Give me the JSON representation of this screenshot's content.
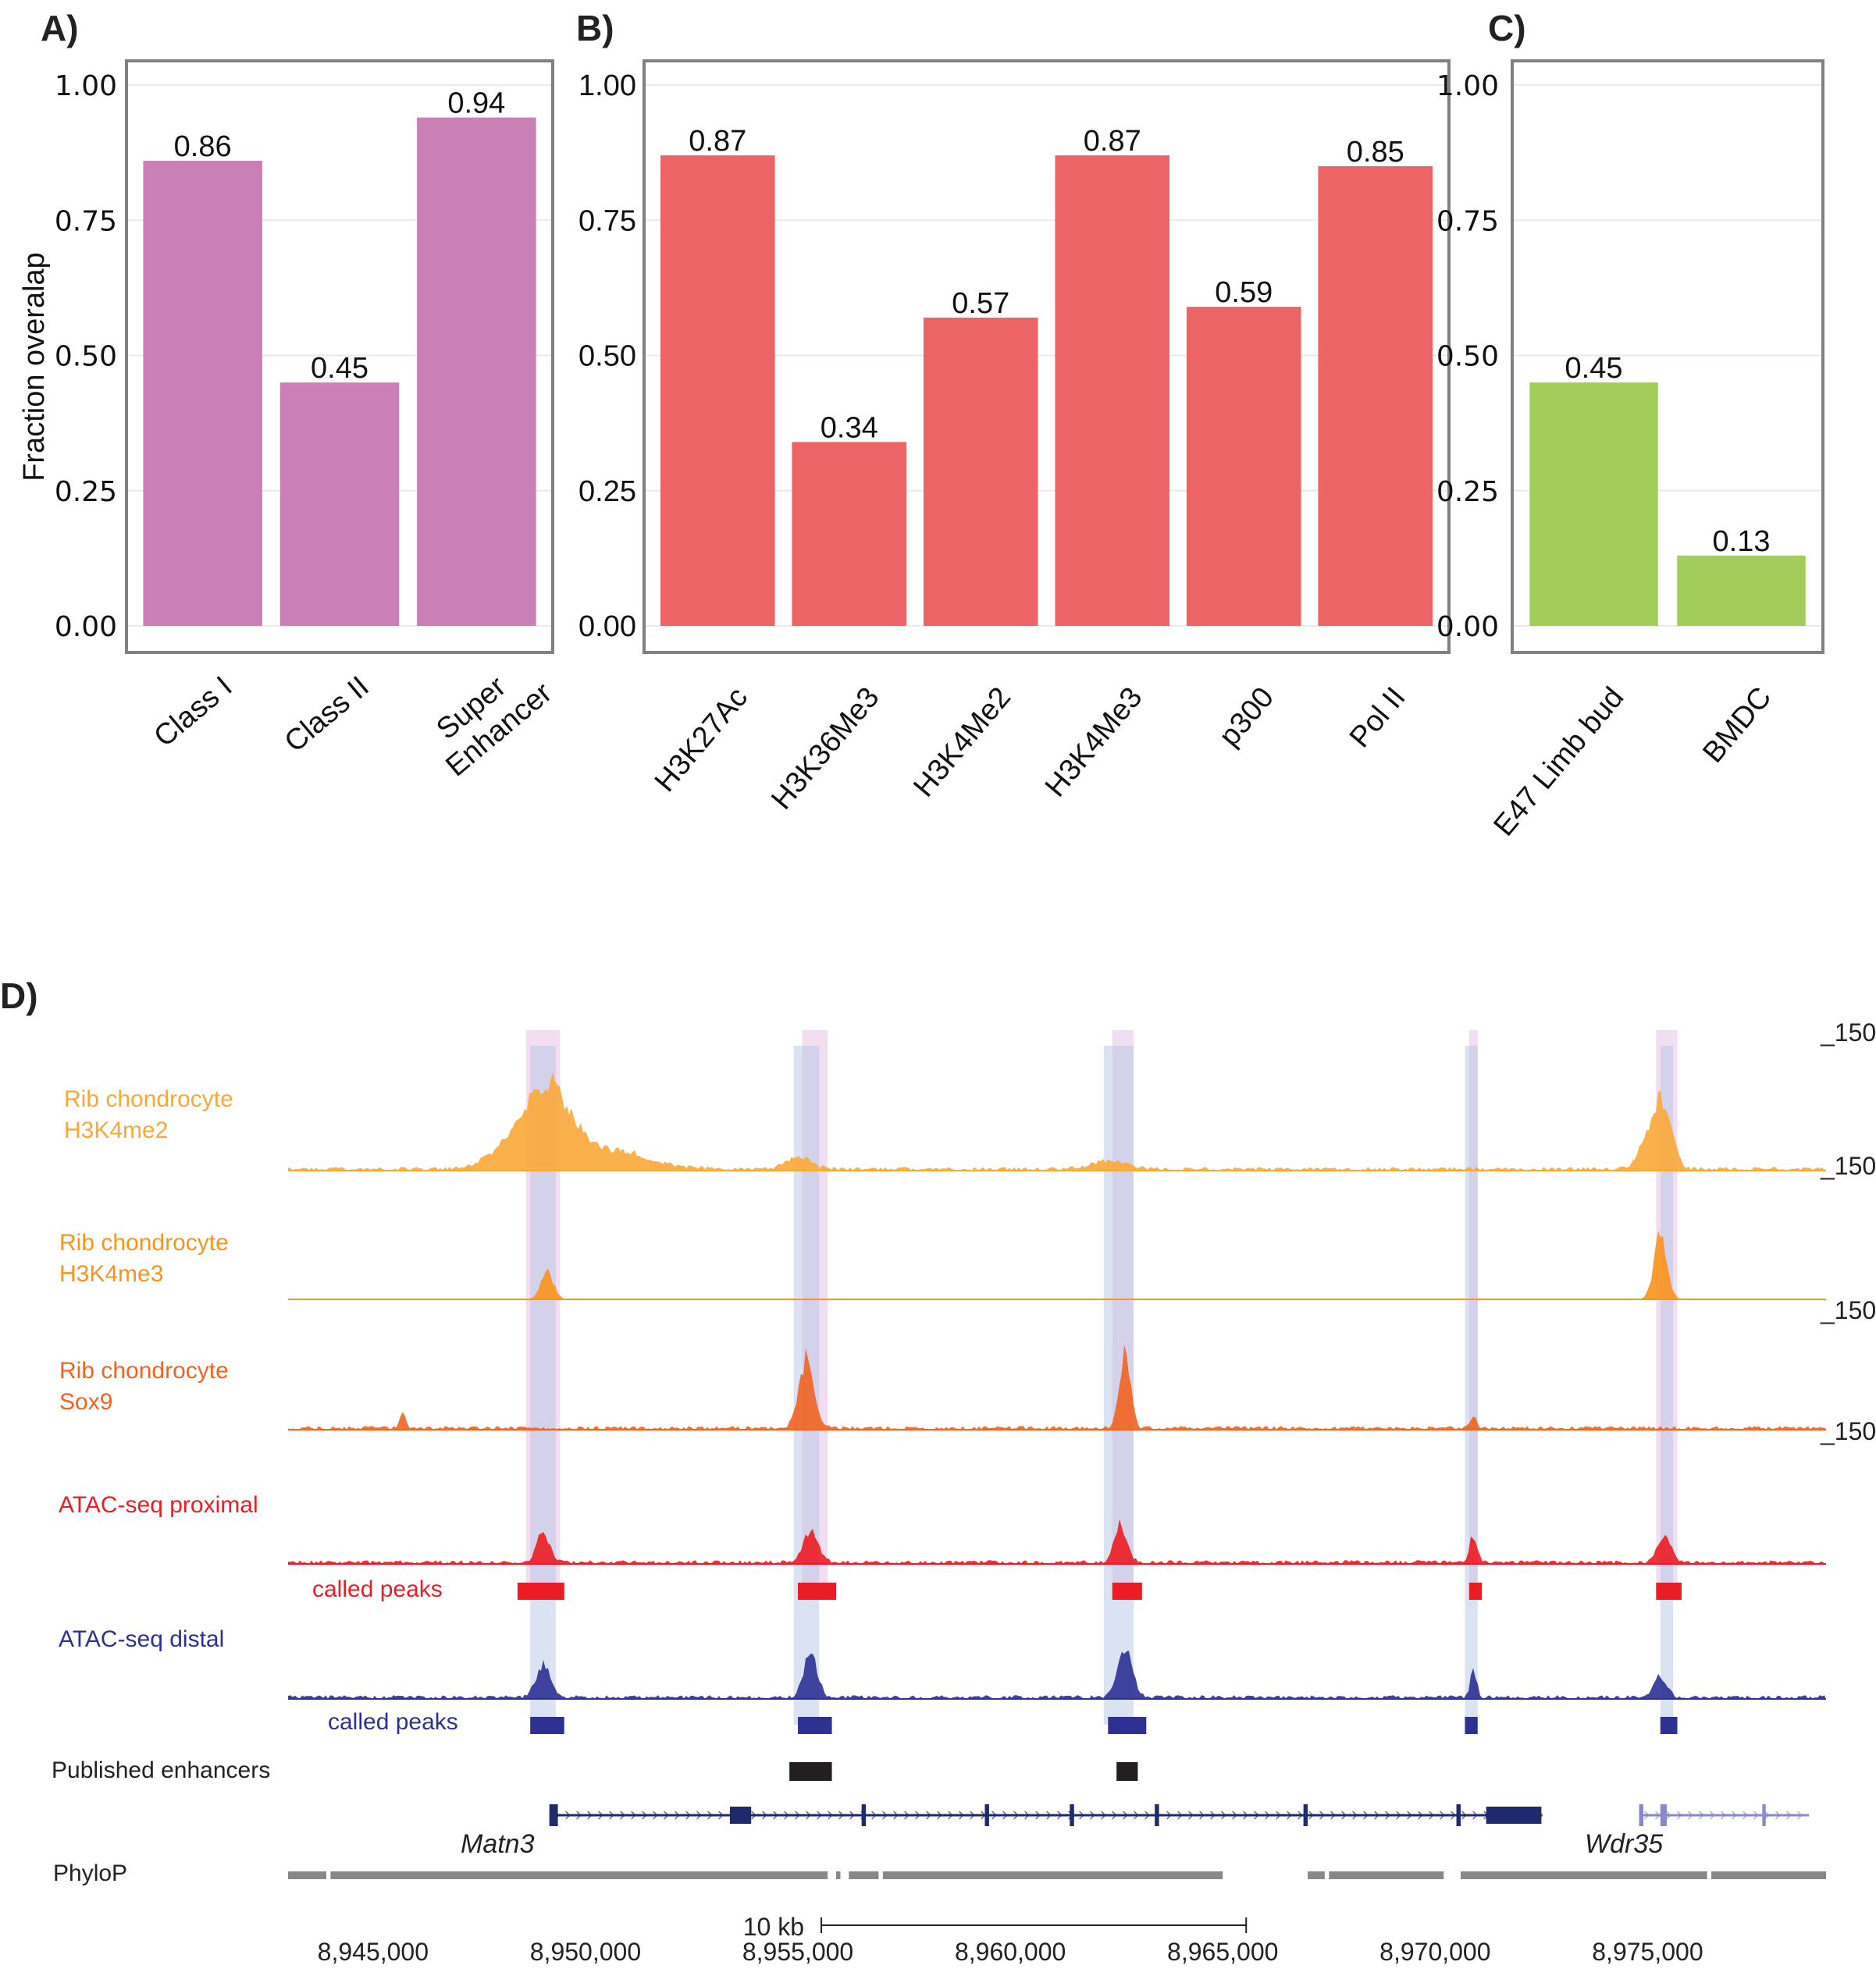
{
  "chart_data": [
    {
      "panel": "A)",
      "type": "bar",
      "categories": [
        "Class I",
        "Class II",
        "Super\nEnhancer"
      ],
      "values": [
        0.86,
        0.45,
        0.94
      ],
      "value_labels": [
        "0.86",
        "0.45",
        "0.94"
      ],
      "ylabel": "Fraction overalap",
      "xlabel": "",
      "ylim": [
        0,
        1
      ],
      "yticks": [
        "0.00",
        "0.25",
        "0.50",
        "0.75",
        "1.00"
      ],
      "color": "#cb80b5",
      "grid": true
    },
    {
      "panel": "B)",
      "type": "bar",
      "categories": [
        "H3K27Ac",
        "H3K36Me3",
        "H3K4Me2",
        "H3K4Me3",
        "p300",
        "Pol II"
      ],
      "values": [
        0.87,
        0.34,
        0.57,
        0.87,
        0.59,
        0.85
      ],
      "value_labels": [
        "0.87",
        "0.34",
        "0.57",
        "0.87",
        "0.59",
        "0.85"
      ],
      "ylabel": "",
      "xlabel": "",
      "ylim": [
        0,
        1
      ],
      "yticks": [
        "0.00",
        "0.25",
        "0.50",
        "0.75",
        "1.00"
      ],
      "color": "#ed6467",
      "grid": true
    },
    {
      "panel": "C)",
      "type": "bar",
      "categories": [
        "E47 Limb bud",
        "BMDC"
      ],
      "values": [
        0.45,
        0.13
      ],
      "value_labels": [
        "0.45",
        "0.13"
      ],
      "ylabel": "",
      "xlabel": "",
      "ylim": [
        0,
        1
      ],
      "yticks": [
        "0.00",
        "0.25",
        "0.50",
        "0.75",
        "1.00"
      ],
      "color": "#a2cd5a",
      "grid": true
    }
  ],
  "browser": {
    "panel": "D)",
    "region_start": 8943000,
    "region_end": 8979200,
    "scale_bar": {
      "label": "10 kb",
      "start": 8955000,
      "end": 8965000
    },
    "coord_labels": [
      "8,945,000",
      "8,950,000",
      "8,955,000",
      "8,960,000",
      "8,965,000",
      "8,970,000",
      "8,975,000"
    ],
    "coord_values": [
      8945000,
      8950000,
      8955000,
      8960000,
      8965000,
      8970000,
      8975000
    ],
    "highlights_pink": [
      [
        8948600,
        8949400
      ],
      [
        8955100,
        8955700
      ],
      [
        8962400,
        8962900
      ],
      [
        8970800,
        8971000
      ],
      [
        8975200,
        8975700
      ]
    ],
    "highlights_blue": [
      [
        8948700,
        8949300
      ],
      [
        8954900,
        8955500
      ],
      [
        8962200,
        8962900
      ],
      [
        8970700,
        8971000
      ],
      [
        8975300,
        8975600
      ]
    ],
    "tracks": [
      {
        "label_lines": [
          "Rib chondrocyte",
          "H3K4me2"
        ],
        "color": "#f9a838",
        "scale_label": "_150",
        "peaks": [
          [
            8949200,
            0.55,
            900
          ],
          [
            8948500,
            0.3,
            1200
          ],
          [
            8950300,
            0.2,
            2000
          ],
          [
            8955000,
            0.12,
            600
          ],
          [
            8962300,
            0.08,
            800
          ],
          [
            8975100,
            0.35,
            500
          ],
          [
            8975400,
            0.45,
            400
          ]
        ],
        "background": 0.03
      },
      {
        "label_lines": [
          "Rib chondrocyte",
          "H3K4me3"
        ],
        "color": "#f7941d",
        "scale_label": "_150",
        "peaks": [
          [
            8949100,
            0.25,
            300
          ],
          [
            8975300,
            0.6,
            300
          ]
        ],
        "background": 0.0
      },
      {
        "label_lines": [
          "Rib chondrocyte",
          "Sox9"
        ],
        "color": "#f26322",
        "scale_label": "_150",
        "peaks": [
          [
            8955200,
            0.65,
            350
          ],
          [
            8962700,
            0.75,
            250
          ],
          [
            8945700,
            0.15,
            120
          ],
          [
            8970900,
            0.1,
            150
          ]
        ],
        "background": 0.03
      },
      {
        "label_lines": [
          "ATAC-seq proximal"
        ],
        "color": "#ec1c24",
        "scale_label": "_150",
        "peaks": [
          [
            8949000,
            0.3,
            300
          ],
          [
            8955300,
            0.3,
            350
          ],
          [
            8962600,
            0.35,
            300
          ],
          [
            8970900,
            0.25,
            180
          ],
          [
            8975400,
            0.25,
            300
          ]
        ],
        "background": 0.03
      },
      {
        "label_lines": [
          "ATAC-seq distal"
        ],
        "color": "#2e3192",
        "scale_label": "",
        "peaks": [
          [
            8949000,
            0.3,
            350
          ],
          [
            8955300,
            0.45,
            300
          ],
          [
            8962700,
            0.45,
            350
          ],
          [
            8970900,
            0.25,
            150
          ],
          [
            8975300,
            0.2,
            300
          ]
        ],
        "background": 0.03
      }
    ],
    "called_peaks": [
      {
        "label": "called peaks",
        "color": "#ec1c24",
        "intervals": [
          [
            8948400,
            8949500
          ],
          [
            8955000,
            8955900
          ],
          [
            8962400,
            8963100
          ],
          [
            8970800,
            8971100
          ],
          [
            8975200,
            8975800
          ]
        ]
      },
      {
        "label": "called peaks",
        "color": "#2e3192",
        "intervals": [
          [
            8948700,
            8949500
          ],
          [
            8955000,
            8955800
          ],
          [
            8962300,
            8963200
          ],
          [
            8970700,
            8971000
          ],
          [
            8975300,
            8975700
          ]
        ]
      }
    ],
    "published_enhancers": {
      "label": "Published enhancers",
      "color": "#231f20",
      "intervals": [
        [
          8954800,
          8955800
        ],
        [
          8962500,
          8963000
        ]
      ]
    },
    "genes": [
      {
        "name": "Matn3",
        "color": "#1f2a6b",
        "start": 8949150,
        "end": 8972500,
        "exons": [
          [
            8949150,
            8949350
          ],
          [
            8953400,
            8953900
          ],
          [
            8956500,
            8956600
          ],
          [
            8959400,
            8959500
          ],
          [
            8961400,
            8961500
          ],
          [
            8963400,
            8963500
          ],
          [
            8966900,
            8967000
          ],
          [
            8970500,
            8970600
          ],
          [
            8971200,
            8972500
          ]
        ]
      },
      {
        "name": "Wdr35",
        "color": "#8a88c8",
        "start": 8974800,
        "end": 8978800,
        "exons": [
          [
            8974800,
            8974900
          ],
          [
            8975300,
            8975450
          ],
          [
            8977700,
            8977780
          ]
        ]
      }
    ],
    "phylop": {
      "label": "PhyloP",
      "color": "#888888",
      "segments": [
        [
          8943000,
          8943900
        ],
        [
          8944000,
          8955700
        ],
        [
          8955900,
          8956000
        ],
        [
          8956200,
          8956900
        ],
        [
          8957000,
          8965000
        ],
        [
          8967000,
          8967400
        ],
        [
          8967500,
          8970200
        ],
        [
          8970600,
          8976400
        ],
        [
          8976500,
          8979200
        ]
      ]
    }
  }
}
